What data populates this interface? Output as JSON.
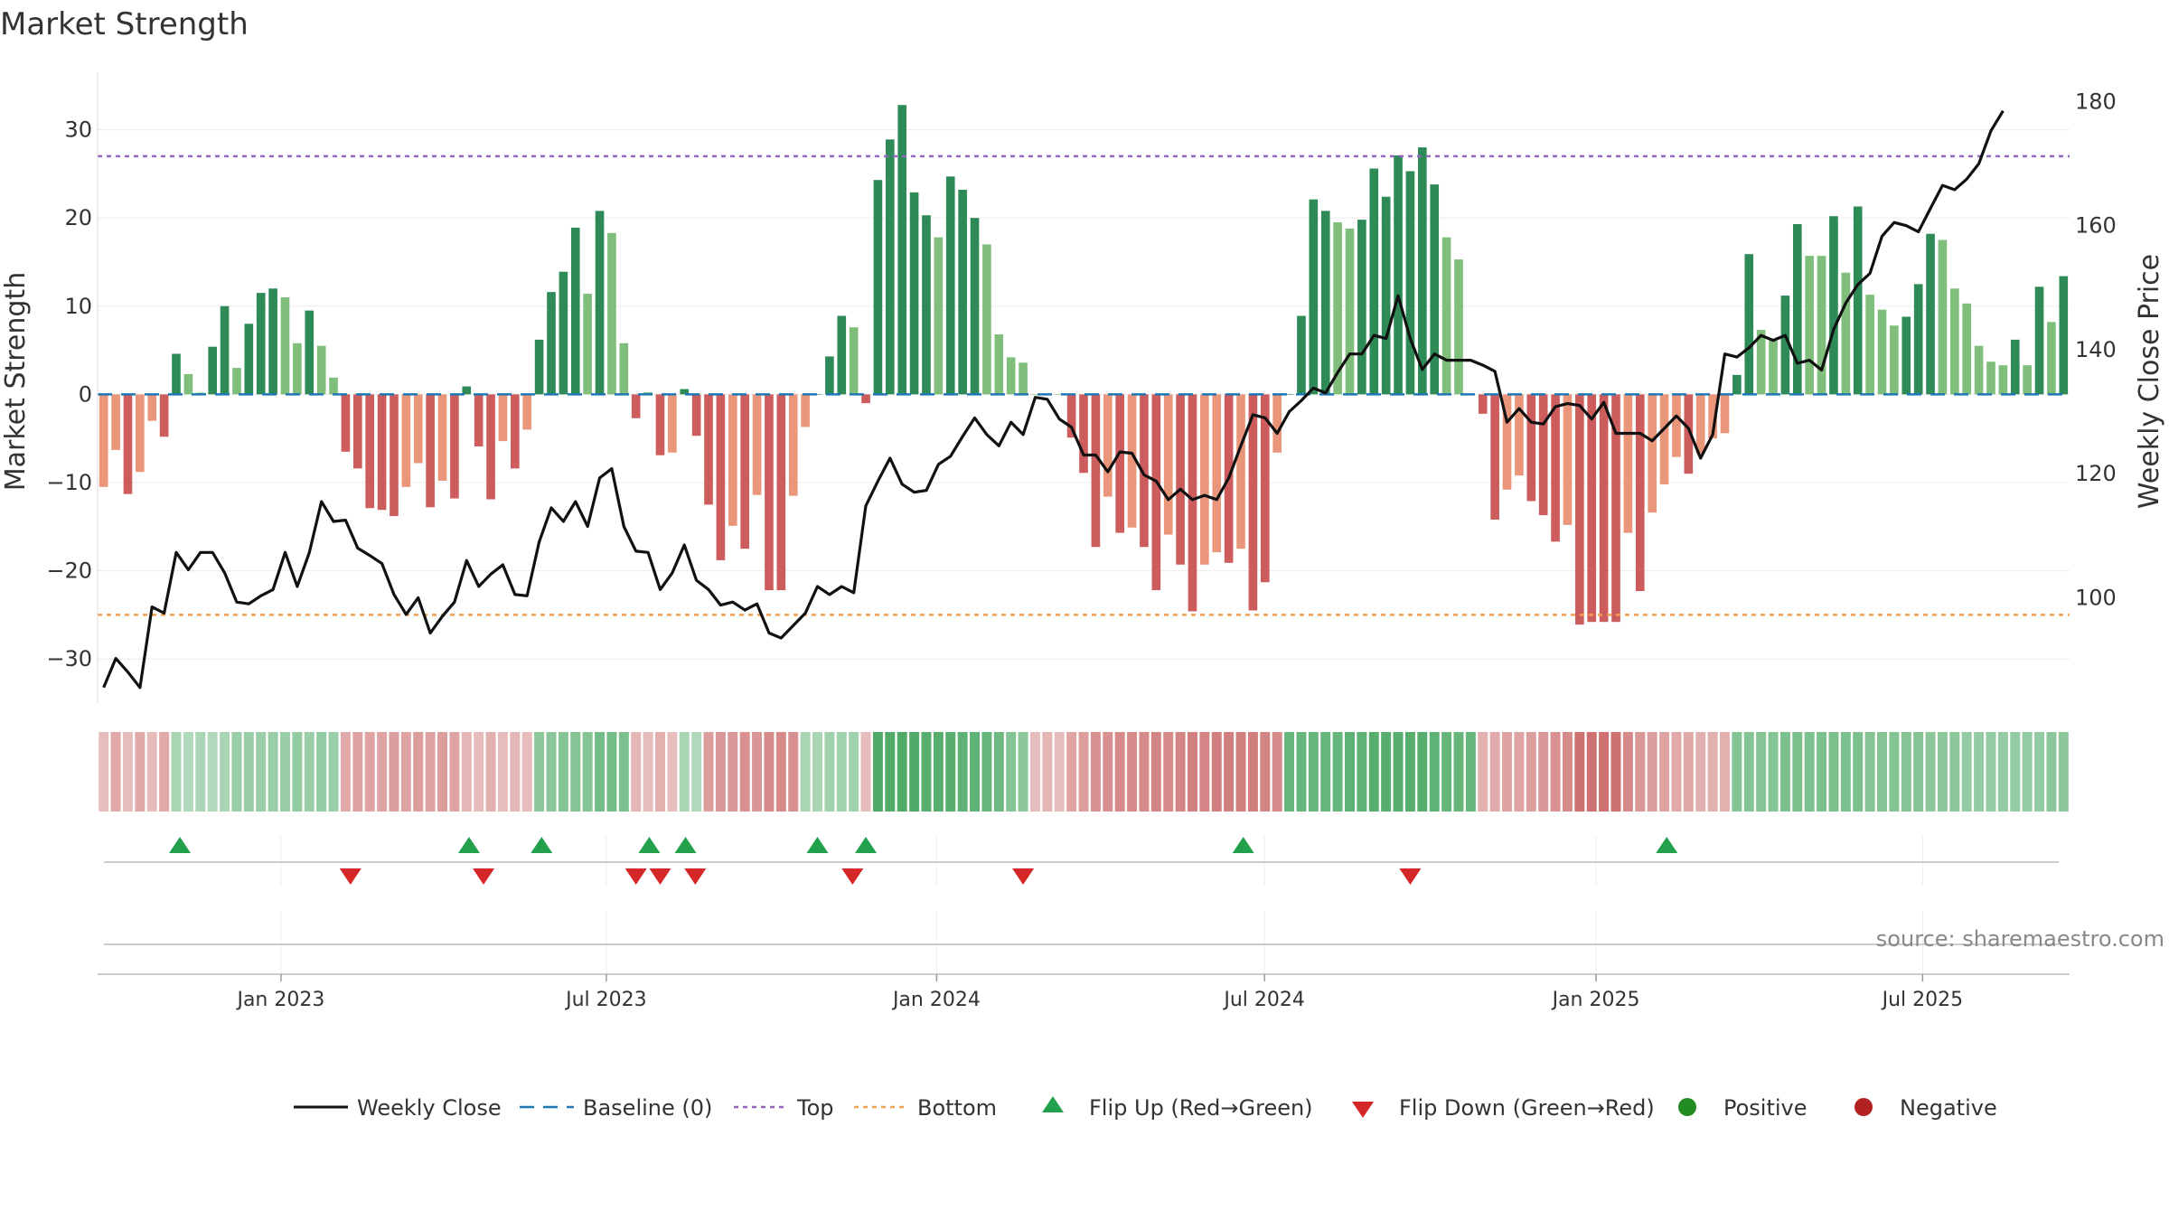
{
  "chart_data": {
    "type": "bar",
    "title": "Market Strength",
    "ylabel": "Market Strength",
    "y2label": "Weekly Close Price",
    "ylim": [
      -35,
      36
    ],
    "y2lim": [
      83,
      184
    ],
    "yticks": [
      -30,
      -20,
      -10,
      0,
      10,
      20,
      30
    ],
    "ytick_labels": [
      "−30",
      "−20",
      "−10",
      "0",
      "10",
      "20",
      "30"
    ],
    "y2ticks": [
      100,
      120,
      140,
      160,
      180
    ],
    "y2tick_labels": [
      "100",
      "120",
      "140",
      "160",
      "180"
    ],
    "x_range": [
      0,
      157
    ],
    "xticks": [
      {
        "label": "Jan 2023",
        "week": 14.6
      },
      {
        "label": "Jul 2023",
        "week": 40.5
      },
      {
        "label": "Jan 2024",
        "week": 66.8
      },
      {
        "label": "Jul 2024",
        "week": 92.9
      },
      {
        "label": "Jan 2025",
        "week": 119.3
      },
      {
        "label": "Jul 2025",
        "week": 145.3
      }
    ],
    "top_level": 27,
    "bottom_level": -25,
    "baseline": 0,
    "strength": [
      -10.5,
      -6.3,
      -11.3,
      -8.8,
      -3,
      -4.8,
      4.6,
      2.3,
      0.2,
      5.4,
      10,
      3,
      8,
      11.5,
      12,
      11,
      5.8,
      9.5,
      5.5,
      1.9,
      -6.5,
      -8.4,
      -12.9,
      -13.1,
      -13.8,
      -10.5,
      -7.8,
      -12.8,
      -9.8,
      -11.8,
      0.9,
      -5.9,
      -11.9,
      -5.3,
      -8.4,
      -4,
      6.2,
      11.6,
      13.9,
      18.9,
      11.4,
      20.8,
      18.3,
      5.8,
      -2.7,
      0.2,
      -6.9,
      -6.6,
      0.6,
      -4.7,
      -12.5,
      -18.8,
      -14.9,
      -17.5,
      -11.4,
      -22.2,
      -22.2,
      -11.5,
      -3.7,
      0,
      4.3,
      8.9,
      7.6,
      -1,
      24.3,
      28.9,
      32.8,
      22.9,
      20.3,
      17.8,
      24.7,
      23.2,
      20,
      17,
      6.8,
      4.2,
      3.6,
      0,
      0,
      0,
      -4.9,
      -8.9,
      -17.3,
      -11.6,
      -15.7,
      -15.1,
      -17.3,
      -22.2,
      -15.9,
      -19.3,
      -24.6,
      -19.3,
      -17.9,
      -19.1,
      -17.5,
      -24.5,
      -21.3,
      -6.6,
      0,
      8.9,
      22.1,
      20.8,
      19.5,
      18.8,
      19.8,
      25.6,
      22.4,
      27.1,
      25.3,
      28,
      23.8,
      17.8,
      15.3,
      0,
      -2.2,
      -14.2,
      -10.8,
      -9.2,
      -12.1,
      -13.7,
      -16.7,
      -14.8,
      -26.1,
      -25.8,
      -25.8,
      -25.8,
      -15.7,
      -22.3,
      -13.4,
      -10.2,
      -7.1,
      -9,
      -6.7,
      -5,
      -4.4,
      2.2,
      15.9,
      7.3,
      6.1,
      11.2,
      19.3,
      15.7,
      15.7,
      20.2,
      13.8,
      21.3,
      11.3,
      9.6,
      7.8,
      8.8,
      12.5,
      18.2,
      17.5,
      12,
      10.3,
      5.5,
      3.7,
      3.3,
      6.2,
      3.3,
      12.2,
      8.2,
      13.4
    ],
    "weekly_close": [
      85.5,
      90.2,
      88,
      85.5,
      98.5,
      97.5,
      107.3,
      104.5,
      107.3,
      107.3,
      104,
      99.3,
      99,
      100.3,
      101.3,
      107.3,
      101.8,
      107.3,
      115.5,
      112.3,
      112.5,
      108,
      106.8,
      105.5,
      100.5,
      97.3,
      100,
      94.3,
      97,
      99.3,
      106,
      101.8,
      103.8,
      105.3,
      100.5,
      100.3,
      109,
      114.5,
      112.3,
      115.5,
      111.5,
      119.3,
      120.8,
      111.5,
      107.5,
      107.3,
      101.3,
      104,
      108.5,
      102.8,
      101.3,
      98.8,
      99.3,
      98,
      99,
      94.3,
      93.5,
      95.5,
      97.5,
      101.8,
      100.5,
      101.8,
      100.8,
      114.8,
      118.8,
      122.5,
      118.3,
      117,
      117.3,
      121.5,
      122.8,
      126,
      129,
      126.3,
      124.5,
      128.3,
      126.3,
      132.3,
      132,
      128.8,
      127.5,
      123,
      123,
      120.3,
      123.5,
      123.3,
      119.8,
      118.8,
      115.8,
      117.5,
      115.8,
      116.5,
      115.8,
      119.3,
      124.5,
      129.5,
      129,
      126.5,
      130,
      131.8,
      133.8,
      133,
      136.3,
      139.3,
      139.3,
      142.3,
      141.8,
      148.7,
      141.8,
      136.8,
      139.3,
      138.3,
      138.3,
      138.3,
      137.5,
      136.5,
      128.3,
      130.5,
      128.3,
      128,
      130.8,
      131.3,
      131,
      128.8,
      131.5,
      126.5,
      126.5,
      126.5,
      125.3,
      127.3,
      129.3,
      127.3,
      122.5,
      126.3,
      139.3,
      138.8,
      140.3,
      142.3,
      141.5,
      142.3,
      137.8,
      138.3,
      136.7,
      143.3,
      147.5,
      150.5,
      152.3,
      158.3,
      160.5,
      160,
      159,
      162.8,
      166.5,
      165.8,
      167.5,
      170,
      175.3,
      178.5
    ],
    "strip_values": [
      -0.2,
      -0.35,
      -0.2,
      -0.35,
      -0.2,
      -0.35,
      0.25,
      0.2,
      0.25,
      0.2,
      0.25,
      0.35,
      0.35,
      0.35,
      0.35,
      0.35,
      0.4,
      0.35,
      0.4,
      0.35,
      -0.35,
      -0.4,
      -0.4,
      -0.4,
      -0.45,
      -0.4,
      -0.45,
      -0.4,
      -0.45,
      -0.4,
      -0.25,
      -0.2,
      -0.3,
      -0.2,
      -0.25,
      -0.2,
      0.45,
      0.45,
      0.5,
      0.5,
      0.5,
      0.6,
      0.6,
      0.55,
      -0.25,
      -0.2,
      -0.3,
      -0.2,
      0.25,
      0.2,
      -0.45,
      -0.5,
      -0.5,
      -0.55,
      -0.5,
      -0.6,
      -0.6,
      -0.55,
      0.25,
      0.25,
      0.3,
      0.3,
      0.3,
      -0.2,
      0.85,
      0.85,
      0.85,
      0.85,
      0.8,
      0.8,
      0.8,
      0.75,
      0.75,
      0.7,
      0.65,
      0.5,
      0.45,
      -0.2,
      -0.25,
      -0.2,
      -0.4,
      -0.45,
      -0.55,
      -0.55,
      -0.6,
      -0.6,
      -0.6,
      -0.65,
      -0.6,
      -0.65,
      -0.7,
      -0.65,
      -0.7,
      -0.7,
      -0.7,
      -0.7,
      -0.65,
      -0.6,
      0.7,
      0.7,
      0.7,
      0.7,
      0.7,
      0.75,
      0.75,
      0.8,
      0.8,
      0.8,
      0.8,
      0.8,
      0.75,
      0.7,
      0.7,
      0.7,
      -0.3,
      -0.35,
      -0.4,
      -0.4,
      -0.45,
      -0.5,
      -0.55,
      -0.6,
      -0.8,
      -0.8,
      -0.8,
      -0.8,
      -0.6,
      -0.5,
      -0.45,
      -0.4,
      -0.35,
      -0.35,
      -0.3,
      -0.3,
      -0.3,
      0.5,
      0.5,
      0.5,
      0.5,
      0.55,
      0.55,
      0.55,
      0.55,
      0.55,
      0.55,
      0.55,
      0.5,
      0.5,
      0.5,
      0.5,
      0.5,
      0.45,
      0.45,
      0.45,
      0.4,
      0.4,
      0.4,
      0.4,
      0.4,
      0.4,
      0.4,
      0.45,
      0.45
    ],
    "flip_up_weeks": [
      6.3,
      30.2,
      36.2,
      45.1,
      48.1,
      59,
      63
    ],
    "flip_down_weeks": [
      20.4,
      31.4,
      44,
      46,
      48.9,
      61.9,
      76
    ],
    "flip_up_weeks_2": [
      94.2,
      129.2
    ],
    "flip_down_weeks_2": [
      108
    ],
    "legend": [
      {
        "key": "weekly_close",
        "label": "Weekly Close"
      },
      {
        "key": "baseline",
        "label": "Baseline (0)"
      },
      {
        "key": "top",
        "label": "Top"
      },
      {
        "key": "bottom",
        "label": "Bottom"
      },
      {
        "key": "flip_up",
        "label": "Flip Up (Red→Green)"
      },
      {
        "key": "flip_down",
        "label": "Flip Down (Green→Red)"
      },
      {
        "key": "positive",
        "label": "Positive"
      },
      {
        "key": "negative",
        "label": "Negative"
      }
    ],
    "source": "source: sharemaestro.com",
    "colors": {
      "strong_green": "#2e8b57",
      "light_green": "#7fbf7b",
      "strong_red": "#cd5c5c",
      "light_red": "#e9967a",
      "line": "#111111",
      "baseline": "#1f77b4",
      "top": "#9467bd",
      "bottom": "#f0a050",
      "flip_up": "#22a04b",
      "flip_down": "#d62728",
      "positive": "#228b22",
      "negative": "#b22222"
    }
  }
}
